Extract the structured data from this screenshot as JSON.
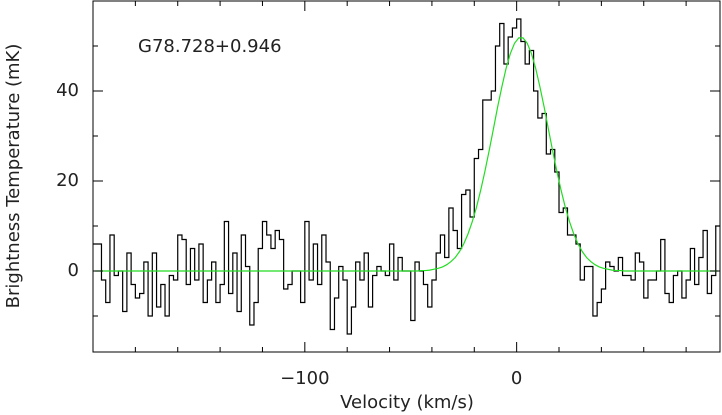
{
  "chart_data": {
    "type": "step",
    "annotation": "G78.728+0.946",
    "xlabel": "Velocity (km/s)",
    "ylabel": "Brightness Temperature (mK)",
    "xlim": [
      -200,
      96
    ],
    "ylim": [
      -18,
      60
    ],
    "xticks": [
      {
        "value": -100,
        "label": "−100"
      },
      0
    ],
    "yticks": [
      0,
      20,
      40
    ],
    "xminor_ticks": [
      -180,
      -160,
      -140,
      -120,
      -80,
      -60,
      -40,
      -20,
      20,
      40,
      60,
      80
    ],
    "yminor_ticks": [
      -10,
      10,
      30,
      50
    ],
    "x": [
      -199,
      -197,
      -195,
      -193,
      -191,
      -189,
      -187,
      -185,
      -183,
      -181,
      -179,
      -177,
      -175,
      -173,
      -171,
      -169,
      -167,
      -165,
      -163,
      -161,
      -159,
      -157,
      -155,
      -153,
      -151,
      -149,
      -147,
      -145,
      -143,
      -141,
      -139,
      -137,
      -135,
      -133,
      -131,
      -129,
      -127,
      -125,
      -123,
      -121,
      -119,
      -117,
      -115,
      -113,
      -111,
      -109,
      -107,
      -105,
      -103,
      -101,
      -99,
      -97,
      -95,
      -93,
      -91,
      -89,
      -87,
      -85,
      -83,
      -81,
      -79,
      -77,
      -75,
      -73,
      -71,
      -69,
      -67,
      -65,
      -63,
      -61,
      -59,
      -57,
      -55,
      -53,
      -51,
      -49,
      -47,
      -45,
      -43,
      -41,
      -39,
      -37,
      -35,
      -33,
      -31,
      -29,
      -27,
      -25,
      -23,
      -21,
      -19,
      -17,
      -15,
      -13,
      -11,
      -9,
      -7,
      -5,
      -3,
      -1,
      1,
      3,
      5,
      7,
      9,
      11,
      13,
      15,
      17,
      19,
      21,
      23,
      25,
      27,
      29,
      31,
      33,
      35,
      37,
      39,
      41,
      43,
      45,
      47,
      49,
      51,
      53,
      55,
      57,
      59,
      61,
      63,
      65,
      67,
      69,
      71,
      73,
      75,
      77,
      79,
      81,
      83,
      85,
      87,
      89,
      91,
      93,
      95
    ],
    "series": [
      {
        "color": "#000000",
        "style": "step",
        "values": [
          6,
          6,
          -2,
          -7,
          8,
          -1,
          0,
          -9,
          4,
          -3,
          -6,
          -5,
          2,
          -10,
          4,
          -8,
          -3,
          -10,
          -1,
          -2,
          8,
          7,
          -3,
          5,
          -2,
          6,
          -7,
          -2,
          2,
          -7,
          -3,
          11,
          -5,
          4,
          -9,
          8,
          1,
          -12,
          -7,
          5,
          11,
          8,
          5,
          9,
          7,
          -4,
          -3,
          0,
          0,
          -7,
          11,
          -2,
          6,
          -3,
          8,
          2,
          -13,
          -6,
          1,
          -2,
          -14,
          -8,
          2,
          -2,
          4,
          -8,
          -1,
          1,
          0,
          -1,
          6,
          -2,
          3,
          0,
          0,
          -11,
          2,
          0,
          -3,
          -8,
          -2,
          4,
          8,
          3,
          14,
          9,
          5,
          17,
          18,
          12,
          25,
          27,
          38,
          38,
          40,
          50,
          55,
          46,
          52,
          54,
          56,
          51,
          46,
          49,
          40,
          34,
          35,
          26,
          27,
          22,
          13,
          14,
          8,
          8,
          6,
          -2,
          1,
          1,
          -10,
          -7,
          -4,
          2,
          1,
          0,
          3,
          -1,
          -1,
          -2,
          4,
          2,
          -6,
          -2,
          -2,
          0,
          7,
          -5,
          -7,
          -1,
          0,
          -6,
          -2,
          5,
          -3,
          3,
          9,
          -5,
          -1,
          10
        ]
      },
      {
        "color": "#22dd22",
        "style": "line",
        "values": [
          0,
          0,
          0,
          0,
          0,
          0,
          0,
          0,
          0,
          0,
          0,
          0,
          0,
          0,
          0,
          0,
          0,
          0,
          0,
          0,
          0,
          0,
          0,
          0,
          0,
          0,
          0,
          0,
          0,
          0,
          0,
          0,
          0,
          0,
          0,
          0,
          0,
          0,
          0,
          0,
          0,
          0,
          0,
          0,
          0,
          0,
          0,
          0,
          0,
          0,
          0,
          0,
          0,
          0,
          0,
          0,
          0,
          0,
          0,
          0,
          0,
          0,
          0,
          0,
          0,
          0,
          0,
          0,
          0,
          0,
          0,
          0,
          0,
          0,
          0,
          0,
          0,
          0.1,
          0.1,
          0.2,
          0.4,
          0.6,
          0.9,
          1.4,
          2.1,
          3.0,
          4.3,
          6.0,
          8.2,
          10.9,
          14.1,
          17.9,
          22.1,
          26.7,
          31.5,
          36.4,
          40.9,
          45.0,
          48.3,
          50.6,
          51.8,
          51.8,
          50.6,
          48.3,
          45.0,
          40.9,
          36.4,
          31.5,
          26.7,
          22.1,
          17.9,
          14.1,
          10.9,
          8.2,
          6.0,
          4.3,
          3.0,
          2.1,
          1.4,
          0.9,
          0.6,
          0.4,
          0.2,
          0.1,
          0.1,
          0,
          0,
          0,
          0,
          0,
          0,
          0,
          0,
          0,
          0,
          0,
          0,
          0,
          0,
          0,
          0,
          0,
          0,
          0,
          0,
          0,
          0,
          0
        ]
      }
    ]
  }
}
